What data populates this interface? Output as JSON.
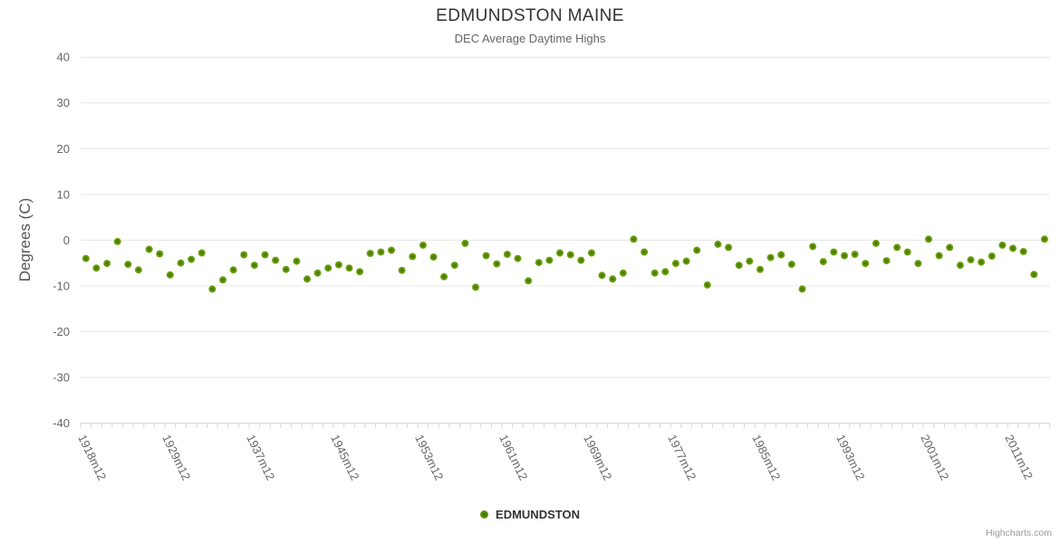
{
  "chart": {
    "title": "EDMUNDSTON MAINE",
    "subtitle": "DEC Average Daytime Highs",
    "y_axis_title": "Degrees (C)",
    "legend_label": "EDMUNDSTON",
    "credits": "Highcharts.com"
  },
  "colors": {
    "marker_outer": "#74ac10",
    "marker_mid": "#578a08",
    "marker_inner": "#3f6b00",
    "gridline": "#e6e6e6",
    "axis_line": "#ccd6eb",
    "tick_mark": "#ccd6eb",
    "title_text": "#333333",
    "axis_text": "#666666",
    "credits_text": "#999999"
  },
  "chart_data": {
    "type": "scatter",
    "title": "EDMUNDSTON MAINE",
    "subtitle": "DEC Average Daytime Highs",
    "xlabel": "",
    "ylabel": "Degrees (C)",
    "ylim": [
      -40,
      40
    ],
    "y_ticks": [
      40,
      30,
      20,
      10,
      0,
      -10,
      -20,
      -30,
      -40
    ],
    "grid": true,
    "legend_position": "bottom-center",
    "x_tick_labels": [
      "1918m12",
      "1929m12",
      "1937m12",
      "1945m12",
      "1953m12",
      "1961m12",
      "1969m12",
      "1977m12",
      "1985m12",
      "1993m12",
      "2001m12",
      "2011m12"
    ],
    "x_tick_indices": [
      0,
      8,
      16,
      24,
      32,
      40,
      48,
      56,
      64,
      72,
      80,
      88
    ],
    "n_points": 92,
    "series": [
      {
        "name": "EDMUNDSTON",
        "values": [
          -4.0,
          -6.1,
          -5.1,
          -0.3,
          -5.3,
          -6.5,
          -2.0,
          -3.0,
          -7.6,
          -5.0,
          -4.2,
          -2.8,
          -10.7,
          -8.7,
          -6.5,
          -3.2,
          -5.5,
          -3.2,
          -4.4,
          -6.4,
          -4.6,
          -8.5,
          -7.2,
          -6.1,
          -5.4,
          -6.1,
          -6.9,
          -2.9,
          -2.6,
          -2.2,
          -6.6,
          -3.6,
          -1.1,
          -3.7,
          -8.0,
          -5.5,
          -0.7,
          -10.3,
          -3.4,
          -5.2,
          -3.1,
          -4.0,
          -8.9,
          -4.9,
          -4.4,
          -2.8,
          -3.2,
          -4.4,
          -2.8,
          -7.7,
          -8.5,
          -7.2,
          0.2,
          -2.6,
          -7.2,
          -6.9,
          -5.1,
          -4.6,
          -2.2,
          -9.8,
          -0.9,
          -1.6,
          -5.5,
          -4.6,
          -6.4,
          -3.8,
          -3.2,
          -5.3,
          -10.7,
          -1.4,
          -4.7,
          -2.6,
          -3.4,
          -3.1,
          -5.1,
          -0.7,
          -4.5,
          -1.6,
          -2.6,
          -5.1,
          0.2,
          -3.4,
          -1.6,
          -5.5,
          -4.3,
          -4.8,
          -3.5,
          -1.1,
          -1.8,
          -2.5,
          -7.5,
          0.2
        ]
      }
    ]
  }
}
